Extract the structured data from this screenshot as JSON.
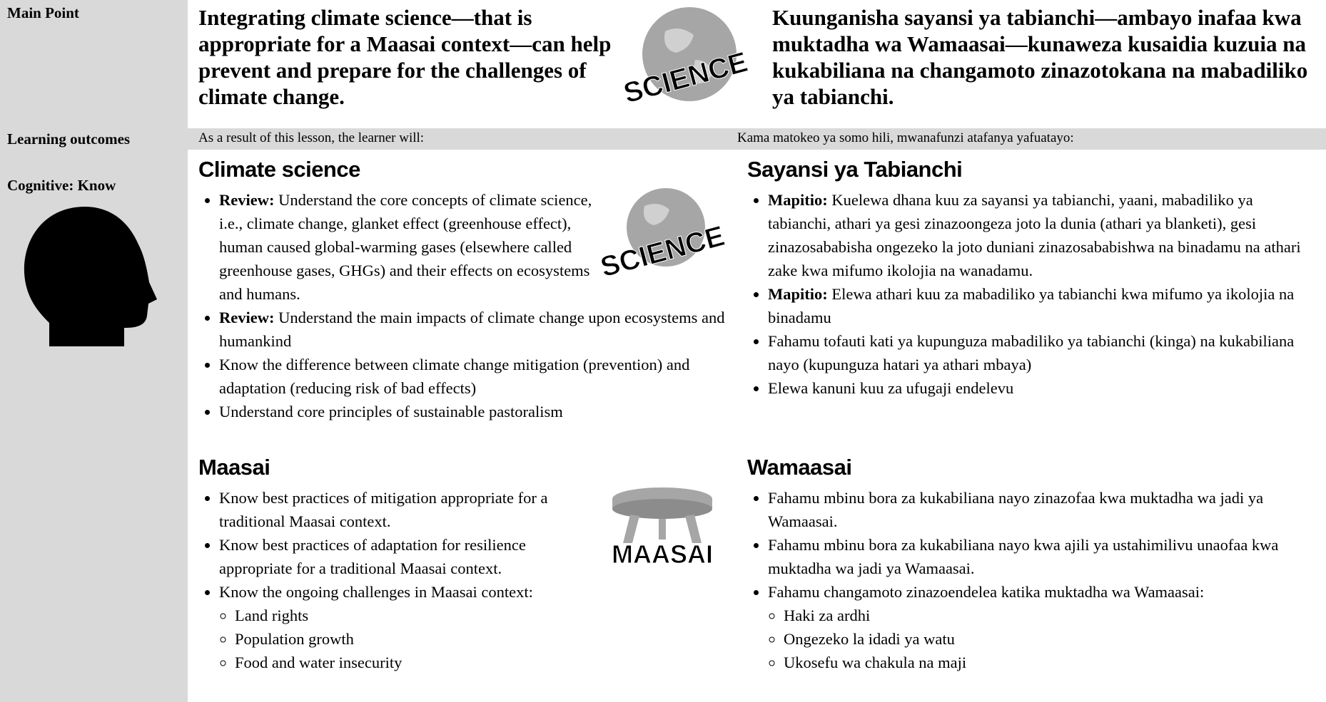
{
  "header": {
    "label": "Main Point",
    "english": "Integrating climate science—that is appropriate for a Maasai context—can help prevent and prepare for the challenges of climate change.",
    "swahili": "Kuunganisha sayansi ya tabianchi—ambayo inafaa kwa muktadha wa Wamaasai—kunaweza kusaidia kuzuia na kukabiliana na changamoto zinazotokana na mabadiliko ya tabianchi.",
    "icon": "SCIENCE"
  },
  "outcomes": {
    "label": "Learning outcomes",
    "english": "As a result of this lesson, the learner will:",
    "swahili": "Kama matokeo ya somo hili, mwanafunzi atafanya yafuatayo:"
  },
  "domain": {
    "label": "Cognitive: Know"
  },
  "sections": [
    {
      "icon": "SCIENCE",
      "english": {
        "heading": "Climate science",
        "items": [
          {
            "lead": "Review:",
            "text": " Understand the core concepts of climate science, i.e., climate change, glanket effect (greenhouse effect), human caused global-warming gases (elsewhere called greenhouse gases, GHGs) and their effects on ecosystems and humans."
          },
          {
            "lead": "Review:",
            "text": " Understand the main impacts of climate change upon ecosystems and humankind"
          },
          {
            "text": "Know the difference between climate change mitigation (prevention) and adaptation (reducing risk of bad effects)"
          },
          {
            "text": "Understand core principles of sustainable pastoralism"
          }
        ]
      },
      "swahili": {
        "heading": "Sayansi ya Tabianchi",
        "items": [
          {
            "lead": "Mapitio:",
            "text": " Kuelewa dhana kuu za sayansi ya tabianchi, yaani, mabadiliko ya tabianchi, athari ya gesi zinazoongeza joto la dunia (athari ya blanketi), gesi zinazosababisha ongezeko la joto duniani zinazosababishwa na binadamu na athari zake kwa mifumo ikolojia na wanadamu."
          },
          {
            "lead": "Mapitio:",
            "text": " Elewa athari kuu za mabadiliko ya tabianchi kwa mifumo ya ikolojia na binadamu"
          },
          {
            "text": "Fahamu tofauti kati ya kupunguza mabadiliko ya tabianchi (kinga) na kukabiliana nayo (kupunguza hatari ya athari mbaya)"
          },
          {
            "text": "Elewa kanuni kuu za ufugaji endelevu"
          }
        ]
      }
    },
    {
      "icon": "MAASAI",
      "english": {
        "heading": "Maasai",
        "items": [
          {
            "text": "Know best practices of mitigation appropriate for a traditional Maasai context."
          },
          {
            "text": "Know best practices of adaptation for resilience appropriate for a traditional Maasai context."
          },
          {
            "text": "Know the ongoing challenges in Maasai context:",
            "sub": [
              "Land rights",
              "Population growth",
              "Food and water insecurity"
            ]
          }
        ]
      },
      "swahili": {
        "heading": "Wamaasai",
        "items": [
          {
            "text": "Fahamu mbinu bora za kukabiliana nayo zinazofaa kwa muktadha wa jadi ya Wamaasai."
          },
          {
            "text": "Fahamu mbinu bora za kukabiliana nayo kwa ajili ya ustahimilivu unaofaa kwa muktadha wa jadi ya Wamaasai."
          },
          {
            "text": "Fahamu changamoto zinazoendelea katika muktadha wa Wamaasai:",
            "sub": [
              "Haki za ardhi",
              "Ongezeko la idadi ya watu",
              "Ukosefu wa chakula na maji"
            ]
          }
        ]
      }
    }
  ]
}
